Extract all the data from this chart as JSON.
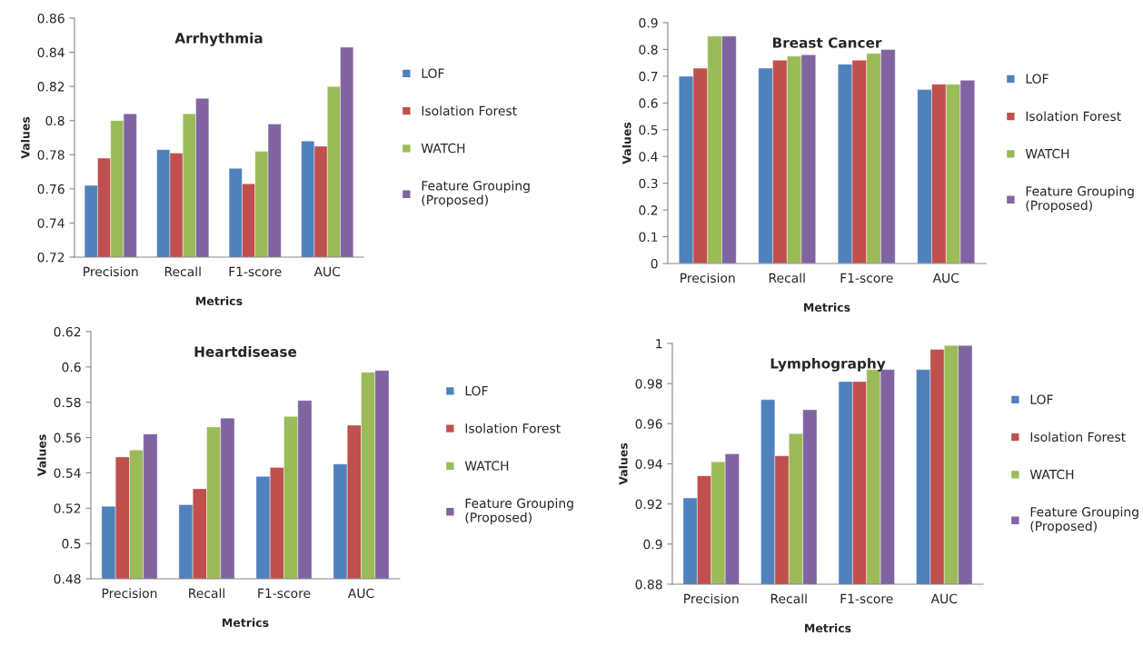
{
  "chart_data": [
    {
      "type": "bar",
      "title": "Arrhythmia",
      "xlabel": "Metrics",
      "ylabel": "Values",
      "categories": [
        "Precision",
        "Recall",
        "F1-score",
        "AUC"
      ],
      "ylim": [
        0.72,
        0.86
      ],
      "yticks": [
        0.72,
        0.74,
        0.76,
        0.78,
        0.8,
        0.82,
        0.84,
        0.86
      ],
      "grid": false,
      "legend": "right",
      "series": [
        {
          "name": "LOF",
          "color": "#4f81bd",
          "values": [
            0.762,
            0.783,
            0.772,
            0.788
          ]
        },
        {
          "name": "Isolation Forest",
          "color": "#c0504d",
          "values": [
            0.778,
            0.781,
            0.763,
            0.785
          ]
        },
        {
          "name": "WATCH",
          "color": "#9bbb59",
          "values": [
            0.8,
            0.804,
            0.782,
            0.82
          ]
        },
        {
          "name": "Feature Grouping\n(Proposed)",
          "color": "#8064a2",
          "values": [
            0.804,
            0.813,
            0.798,
            0.843
          ]
        }
      ]
    },
    {
      "type": "bar",
      "title": "Breast Cancer",
      "xlabel": "Metrics",
      "ylabel": "Values",
      "categories": [
        "Precision",
        "Recall",
        "F1-score",
        "AUC"
      ],
      "ylim": [
        0,
        0.9
      ],
      "yticks": [
        0,
        0.1,
        0.2,
        0.3,
        0.4,
        0.5,
        0.6,
        0.7,
        0.8,
        0.9
      ],
      "grid": false,
      "legend": "right",
      "series": [
        {
          "name": "LOF",
          "color": "#4f81bd",
          "values": [
            0.7,
            0.73,
            0.745,
            0.65
          ]
        },
        {
          "name": "Isolation Forest",
          "color": "#c0504d",
          "values": [
            0.73,
            0.76,
            0.76,
            0.67
          ]
        },
        {
          "name": "WATCH",
          "color": "#9bbb59",
          "values": [
            0.85,
            0.775,
            0.785,
            0.67
          ]
        },
        {
          "name": "Feature Grouping\n(Proposed)",
          "color": "#8064a2",
          "values": [
            0.85,
            0.78,
            0.8,
            0.685
          ]
        }
      ]
    },
    {
      "type": "bar",
      "title": "Heartdisease",
      "xlabel": "Metrics",
      "ylabel": "Values",
      "categories": [
        "Precision",
        "Recall",
        "F1-score",
        "AUC"
      ],
      "ylim": [
        0.48,
        0.62
      ],
      "yticks": [
        0.48,
        0.5,
        0.52,
        0.54,
        0.56,
        0.58,
        0.6,
        0.62
      ],
      "grid": false,
      "legend": "right",
      "series": [
        {
          "name": "LOF",
          "color": "#4f81bd",
          "values": [
            0.521,
            0.522,
            0.538,
            0.545
          ]
        },
        {
          "name": "Isolation Forest",
          "color": "#c0504d",
          "values": [
            0.549,
            0.531,
            0.543,
            0.567
          ]
        },
        {
          "name": "WATCH",
          "color": "#9bbb59",
          "values": [
            0.553,
            0.566,
            0.572,
            0.597
          ]
        },
        {
          "name": "Feature Grouping\n(Proposed)",
          "color": "#8064a2",
          "values": [
            0.562,
            0.571,
            0.581,
            0.598
          ]
        }
      ]
    },
    {
      "type": "bar",
      "title": "Lymphography",
      "xlabel": "Metrics",
      "ylabel": "Values",
      "categories": [
        "Precision",
        "Recall",
        "F1-score",
        "AUC"
      ],
      "ylim": [
        0.88,
        1
      ],
      "yticks": [
        0.88,
        0.9,
        0.92,
        0.94,
        0.96,
        0.98,
        1
      ],
      "grid": false,
      "legend": "right",
      "series": [
        {
          "name": "LOF",
          "color": "#4f81bd",
          "values": [
            0.923,
            0.972,
            0.981,
            0.987
          ]
        },
        {
          "name": "Isolation Forest",
          "color": "#c0504d",
          "values": [
            0.934,
            0.944,
            0.981,
            0.997
          ]
        },
        {
          "name": "WATCH",
          "color": "#9bbb59",
          "values": [
            0.941,
            0.955,
            0.987,
            0.999
          ]
        },
        {
          "name": "Feature Grouping\n(Proposed)",
          "color": "#8064a2",
          "values": [
            0.945,
            0.967,
            0.987,
            0.999
          ]
        }
      ]
    }
  ]
}
